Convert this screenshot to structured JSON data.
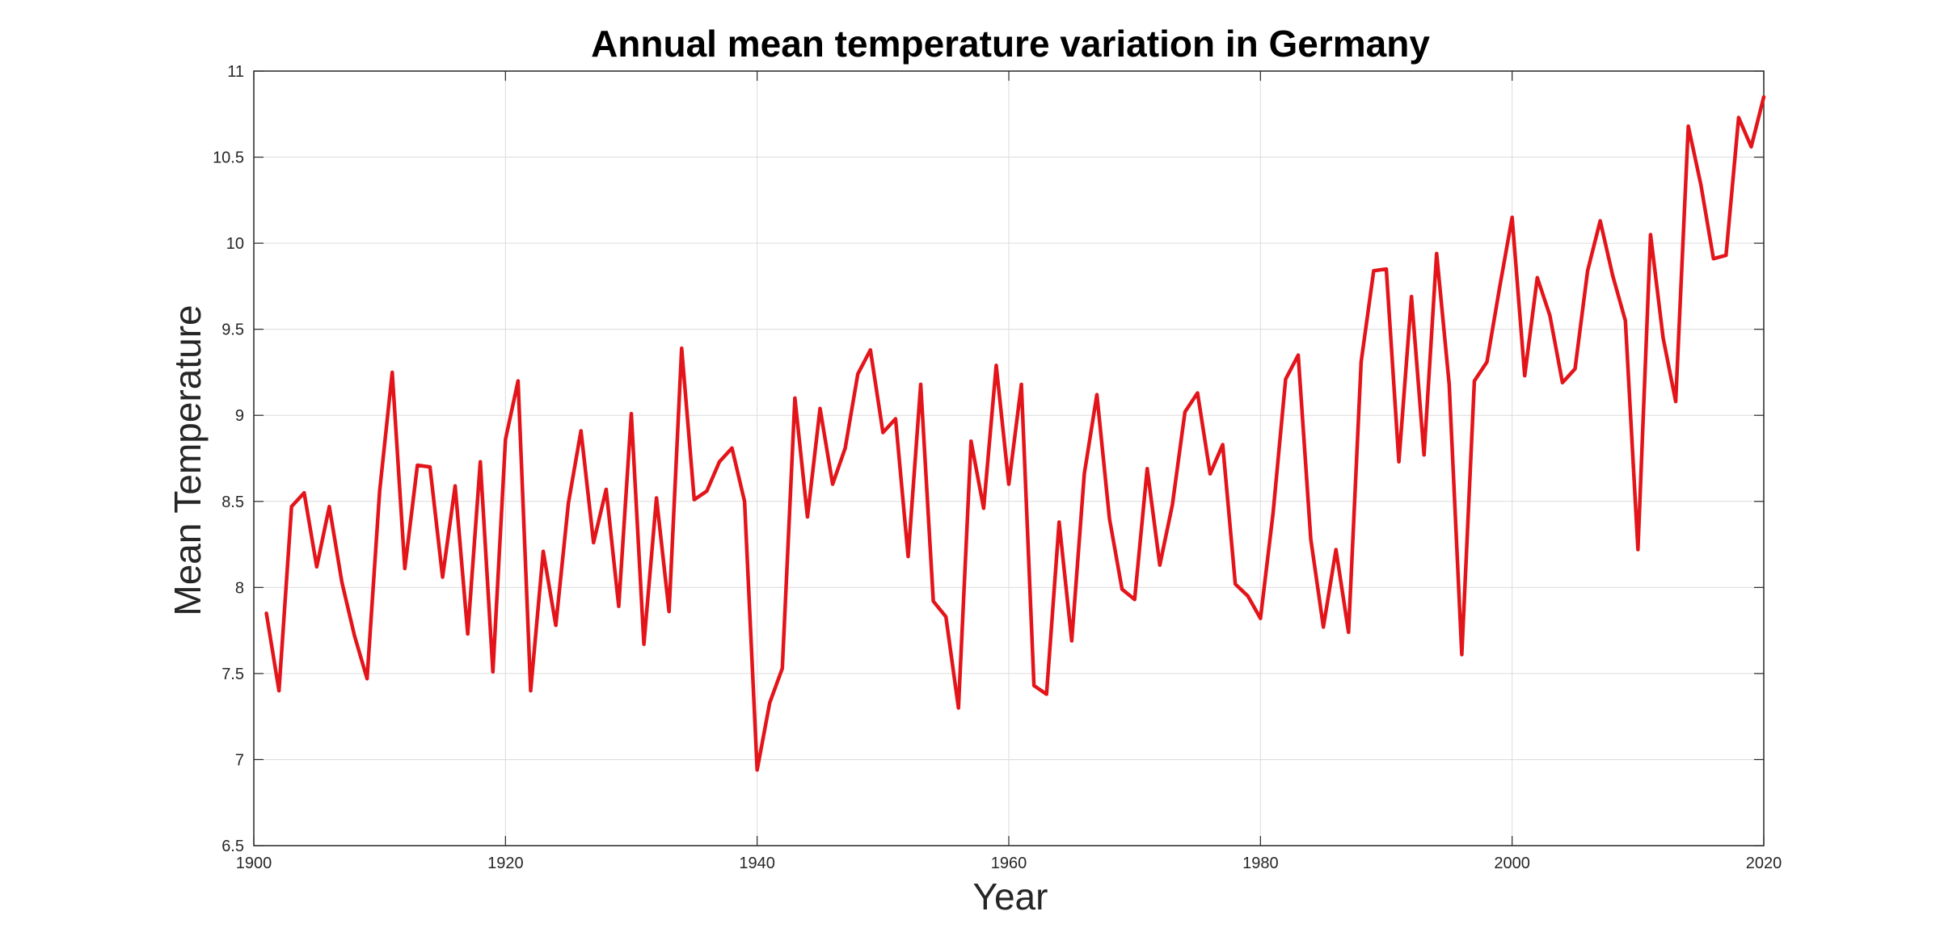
{
  "chart_data": {
    "type": "line",
    "title": "Annual mean temperature variation in Germany",
    "xlabel": "Year",
    "ylabel": "Mean Temperature",
    "xlim": [
      1900,
      2020
    ],
    "ylim": [
      6.5,
      11
    ],
    "xticks": [
      1900,
      1920,
      1940,
      1960,
      1980,
      2000,
      2020
    ],
    "yticks": [
      6.5,
      7,
      7.5,
      8,
      8.5,
      9,
      9.5,
      10,
      10.5,
      11
    ],
    "grid": true,
    "legend": "none",
    "line_color": "#e3141a",
    "series": [
      {
        "x": [
          1901,
          1902,
          1903,
          1904,
          1905,
          1906,
          1907,
          1908,
          1909,
          1910,
          1911,
          1912,
          1913,
          1914,
          1915,
          1916,
          1917,
          1918,
          1919,
          1920,
          1921,
          1922,
          1923,
          1924,
          1925,
          1926,
          1927,
          1928,
          1929,
          1930,
          1931,
          1932,
          1933,
          1934,
          1935,
          1936,
          1937,
          1938,
          1939,
          1940,
          1941,
          1942,
          1943,
          1944,
          1945,
          1946,
          1947,
          1948,
          1949,
          1950,
          1951,
          1952,
          1953,
          1954,
          1955,
          1956,
          1957,
          1958,
          1959,
          1960,
          1961,
          1962,
          1963,
          1964,
          1965,
          1966,
          1967,
          1968,
          1969,
          1970,
          1971,
          1972,
          1973,
          1974,
          1975,
          1976,
          1977,
          1978,
          1979,
          1980,
          1981,
          1982,
          1983,
          1984,
          1985,
          1986,
          1987,
          1988,
          1989,
          1990,
          1991,
          1992,
          1993,
          1994,
          1995,
          1996,
          1997,
          1998,
          1999,
          2000,
          2001,
          2002,
          2003,
          2004,
          2005,
          2006,
          2007,
          2008,
          2009,
          2010,
          2011,
          2012,
          2013,
          2014,
          2015,
          2016,
          2017,
          2018,
          2019,
          2020
        ],
        "y": [
          7.85,
          7.4,
          8.47,
          8.55,
          8.12,
          8.47,
          8.03,
          7.72,
          7.47,
          8.56,
          9.25,
          8.11,
          8.71,
          8.7,
          8.06,
          8.59,
          7.73,
          8.73,
          7.51,
          8.86,
          9.2,
          7.4,
          8.21,
          7.78,
          8.49,
          8.91,
          8.26,
          8.57,
          7.89,
          9.01,
          7.67,
          8.52,
          7.86,
          9.39,
          8.51,
          8.56,
          8.73,
          8.81,
          8.5,
          6.94,
          7.33,
          7.53,
          9.1,
          8.41,
          9.04,
          8.6,
          8.81,
          9.24,
          9.38,
          8.9,
          8.98,
          8.18,
          9.18,
          7.92,
          7.83,
          7.3,
          8.85,
          8.46,
          9.29,
          8.6,
          9.18,
          7.43,
          7.38,
          8.38,
          7.69,
          8.66,
          9.12,
          8.4,
          7.99,
          7.93,
          8.69,
          8.13,
          8.48,
          9.02,
          9.13,
          8.66,
          8.83,
          8.02,
          7.95,
          7.82,
          8.43,
          9.21,
          9.35,
          8.28,
          7.77,
          8.22,
          7.74,
          9.31,
          9.84,
          9.85,
          8.73,
          9.69,
          8.77,
          9.94,
          9.18,
          7.61,
          9.2,
          9.31,
          9.74,
          10.15,
          9.23,
          9.8,
          9.58,
          9.19,
          9.27,
          9.84,
          10.13,
          9.81,
          9.55,
          8.22,
          10.05,
          9.45,
          9.08,
          10.68,
          10.34,
          9.91,
          9.93,
          10.73,
          10.56,
          10.85
        ]
      }
    ]
  }
}
